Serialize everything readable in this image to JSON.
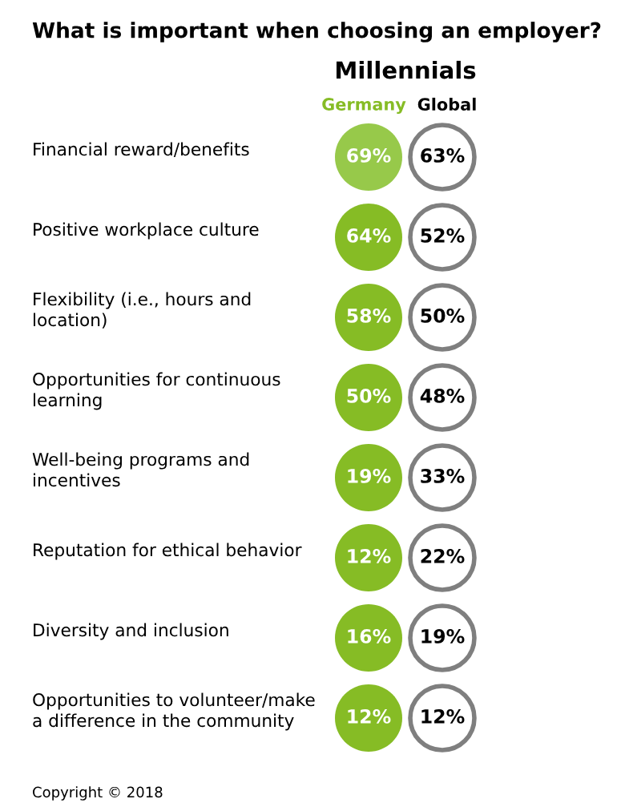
{
  "chart_data": {
    "type": "other",
    "title": "What is important when choosing an employer?",
    "subtitle": "Millennials",
    "categories": [
      "Financial reward/benefits",
      "Positive workplace culture",
      "Flexibility (i.e., hours and location)",
      "Opportunities for continuous learning",
      "Well-being programs and incentives",
      "Reputation for ethical behavior",
      "Diversity and inclusion",
      "Opportunities to volunteer/make a difference in the community"
    ],
    "series": [
      {
        "name": "Germany",
        "color": "#86bc25",
        "colors": [
          "#97c94a",
          "#86bc25",
          "#86bc25",
          "#86bc25",
          "#86bc25",
          "#86bc25",
          "#86bc25",
          "#86bc25"
        ],
        "values": [
          69,
          64,
          58,
          50,
          19,
          12,
          16,
          12
        ],
        "value_labels": [
          "69%",
          "64%",
          "58%",
          "50%",
          "19%",
          "12%",
          "16%",
          "12%"
        ]
      },
      {
        "name": "Global",
        "color": "#7f7f7f",
        "values": [
          63,
          52,
          50,
          48,
          33,
          22,
          19,
          12
        ],
        "value_labels": [
          "63%",
          "52%",
          "50%",
          "48%",
          "33%",
          "22%",
          "19%",
          "12%"
        ]
      }
    ],
    "annotations": [
      "Copyright © 2018"
    ]
  }
}
